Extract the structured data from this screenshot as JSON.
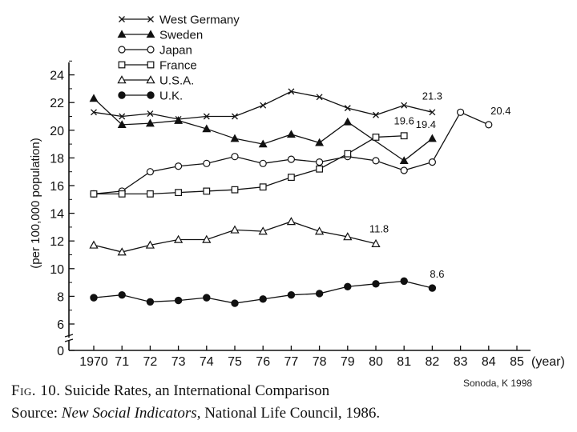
{
  "chart_data": {
    "type": "line",
    "x": [
      1970,
      1971,
      1972,
      1973,
      1974,
      1975,
      1976,
      1977,
      1978,
      1979,
      1980,
      1981,
      1982,
      1983,
      1984,
      1985
    ],
    "x_tick_labels": [
      "1970",
      "71",
      "72",
      "73",
      "74",
      "75",
      "76",
      "77",
      "78",
      "79",
      "80",
      "81",
      "82",
      "83",
      "84",
      "85"
    ],
    "x_unit_label": "(year)",
    "ylabel": "(per 100,000 population)",
    "y_ticks": [
      0,
      6,
      8,
      10,
      12,
      14,
      16,
      18,
      20,
      22,
      24
    ],
    "ylim": [
      0,
      25
    ],
    "axis_break": "between 0 and 6",
    "series": [
      {
        "name": "West Germany",
        "marker": "x",
        "values": [
          21.3,
          21.0,
          21.2,
          20.8,
          21.0,
          21.0,
          21.8,
          22.8,
          22.4,
          21.6,
          21.1,
          21.8,
          21.3,
          null,
          null,
          null
        ]
      },
      {
        "name": "Sweden",
        "marker": "filled-triangle",
        "values": [
          22.3,
          20.4,
          20.5,
          20.7,
          20.1,
          19.4,
          19.0,
          19.7,
          19.1,
          20.6,
          null,
          17.8,
          19.4,
          null,
          null,
          null
        ]
      },
      {
        "name": "Japan",
        "marker": "open-circle",
        "values": [
          15.4,
          15.6,
          17.0,
          17.4,
          17.6,
          18.1,
          17.6,
          17.9,
          17.7,
          18.1,
          17.8,
          17.1,
          17.7,
          21.3,
          20.4,
          null
        ]
      },
      {
        "name": "France",
        "marker": "open-square",
        "values": [
          15.4,
          15.4,
          15.4,
          15.5,
          15.6,
          15.7,
          15.9,
          16.6,
          17.2,
          18.3,
          19.5,
          19.6,
          null,
          null,
          null,
          null
        ]
      },
      {
        "name": "U.S.A.",
        "marker": "open-triangle",
        "values": [
          11.7,
          11.2,
          11.7,
          12.1,
          12.1,
          12.8,
          12.7,
          13.4,
          12.7,
          12.3,
          11.8,
          null,
          null,
          null,
          null,
          null
        ]
      },
      {
        "name": "U.K.",
        "marker": "filled-circle",
        "values": [
          7.9,
          8.1,
          7.6,
          7.7,
          7.9,
          7.5,
          7.8,
          8.1,
          8.2,
          8.7,
          8.9,
          9.1,
          8.6,
          null,
          null,
          null
        ]
      }
    ],
    "annotations": [
      {
        "text": "21.3",
        "x": 1982,
        "y": 21.3
      },
      {
        "text": "20.4",
        "x": 1984,
        "y": 20.4
      },
      {
        "text": "19.6",
        "x": 1981,
        "y": 19.6
      },
      {
        "text": "19.4",
        "x": 1982,
        "y": 19.4
      },
      {
        "text": "11.8",
        "x": 1980,
        "y": 11.8
      },
      {
        "text": "8.6",
        "x": 1982,
        "y": 8.6
      }
    ],
    "legend_position": "top-center"
  },
  "caption": {
    "fig_label": "Fig. 10.",
    "title": " Suicide Rates, an International Comparison",
    "source_prefix": "Source: ",
    "source_title": "New Social Indicators",
    "source_suffix": ", National Life Council, 1986."
  },
  "credit": "Sonoda, K 1998"
}
